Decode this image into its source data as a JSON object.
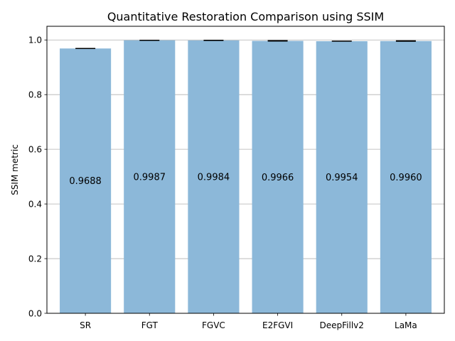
{
  "chart_data": {
    "type": "bar",
    "title": "Quantitative Restoration Comparison using SSIM",
    "xlabel": "",
    "ylabel": "SSIM metric",
    "categories": [
      "SR",
      "FGT",
      "FGVC",
      "E2FGVI",
      "DeepFillv2",
      "LaMa"
    ],
    "values": [
      0.9688,
      0.9987,
      0.9984,
      0.9966,
      0.9954,
      0.996
    ],
    "value_labels": [
      "0.9688",
      "0.9987",
      "0.9984",
      "0.9966",
      "0.9954",
      "0.9960"
    ],
    "error": [
      0.001,
      0.001,
      0.001,
      0.002,
      0.001,
      0.002
    ],
    "ylim": [
      0,
      1.05
    ],
    "yticks": [
      0.0,
      0.2,
      0.4,
      0.6,
      0.8,
      1.0
    ],
    "ytick_labels": [
      "0.0",
      "0.2",
      "0.4",
      "0.6",
      "0.8",
      "1.0"
    ],
    "grid": "y",
    "bar_color": "#8cb8d9",
    "grid_color": "#b0b0b0"
  }
}
